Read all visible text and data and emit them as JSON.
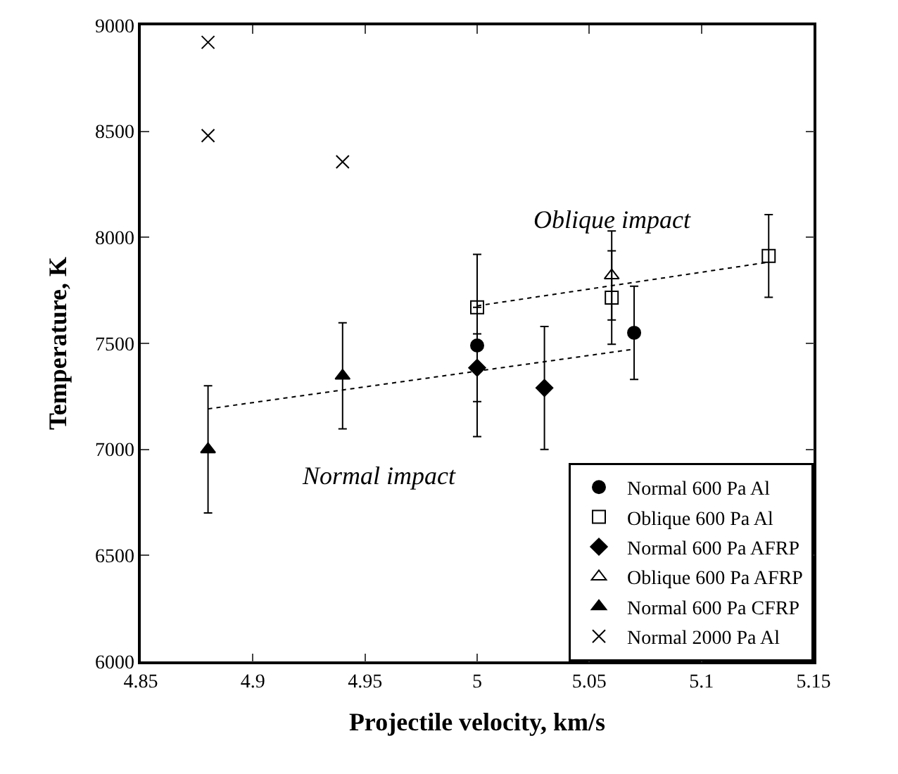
{
  "chart_data": {
    "type": "scatter",
    "xlabel": "Projectile velocity, km/s",
    "ylabel": "Temperature, K",
    "xlim": [
      4.85,
      5.15
    ],
    "xticks": [
      4.85,
      4.9,
      4.95,
      5,
      5.05,
      5.1,
      5.15
    ],
    "ylim": [
      6000,
      9000
    ],
    "yticks": [
      6000,
      6500,
      7000,
      7500,
      8000,
      8500,
      9000
    ],
    "grid": false,
    "legend": "bottom right",
    "series": [
      {
        "name": "Normal 600 Pa Al",
        "color": "#000000",
        "marker": "circle",
        "x": [
          5.0,
          5.07
        ],
        "values": [
          7490,
          7550
        ],
        "errors": [
          430,
          220
        ]
      },
      {
        "name": "Oblique 600 Pa Al",
        "color": "#000000",
        "marker": "square-open",
        "x": [
          5.0,
          5.06,
          5.13
        ],
        "values": [
          7670,
          7716,
          7912
        ],
        "errors": [
          null,
          220,
          195
        ]
      },
      {
        "name": "Normal 600 Pa AFRP",
        "color": "#000000",
        "marker": "diamond",
        "x": [
          5.0,
          5.03
        ],
        "values": [
          7385,
          7290
        ],
        "errors": [
          160,
          290
        ]
      },
      {
        "name": "Oblique 600 Pa AFRP",
        "color": "#000000",
        "marker": "triangle-open",
        "x": [
          5.06
        ],
        "values": [
          7820
        ],
        "errors": [
          210
        ]
      },
      {
        "name": "Normal 600 Pa CFRP",
        "color": "#000000",
        "marker": "triangle",
        "x": [
          4.88,
          4.94
        ],
        "values": [
          7000,
          7347
        ],
        "errors": [
          300,
          250
        ]
      },
      {
        "name": "Normal 2000 Pa Al",
        "color": "#000000",
        "marker": "cross",
        "x": [
          4.88,
          4.88,
          4.94
        ],
        "values": [
          8920,
          8480,
          8356
        ]
      },
      {
        "type": "line",
        "color": "#000000",
        "line_style": "dotted",
        "x": [
          4.88,
          5.07
        ],
        "values": [
          7191,
          7473
        ]
      },
      {
        "type": "line",
        "color": "#000000",
        "line_style": "dotted",
        "x": [
          5.0,
          5.13
        ],
        "values": [
          7677,
          7883
        ]
      }
    ],
    "annotations": [
      "Oblique impact",
      "Normal impact"
    ]
  }
}
